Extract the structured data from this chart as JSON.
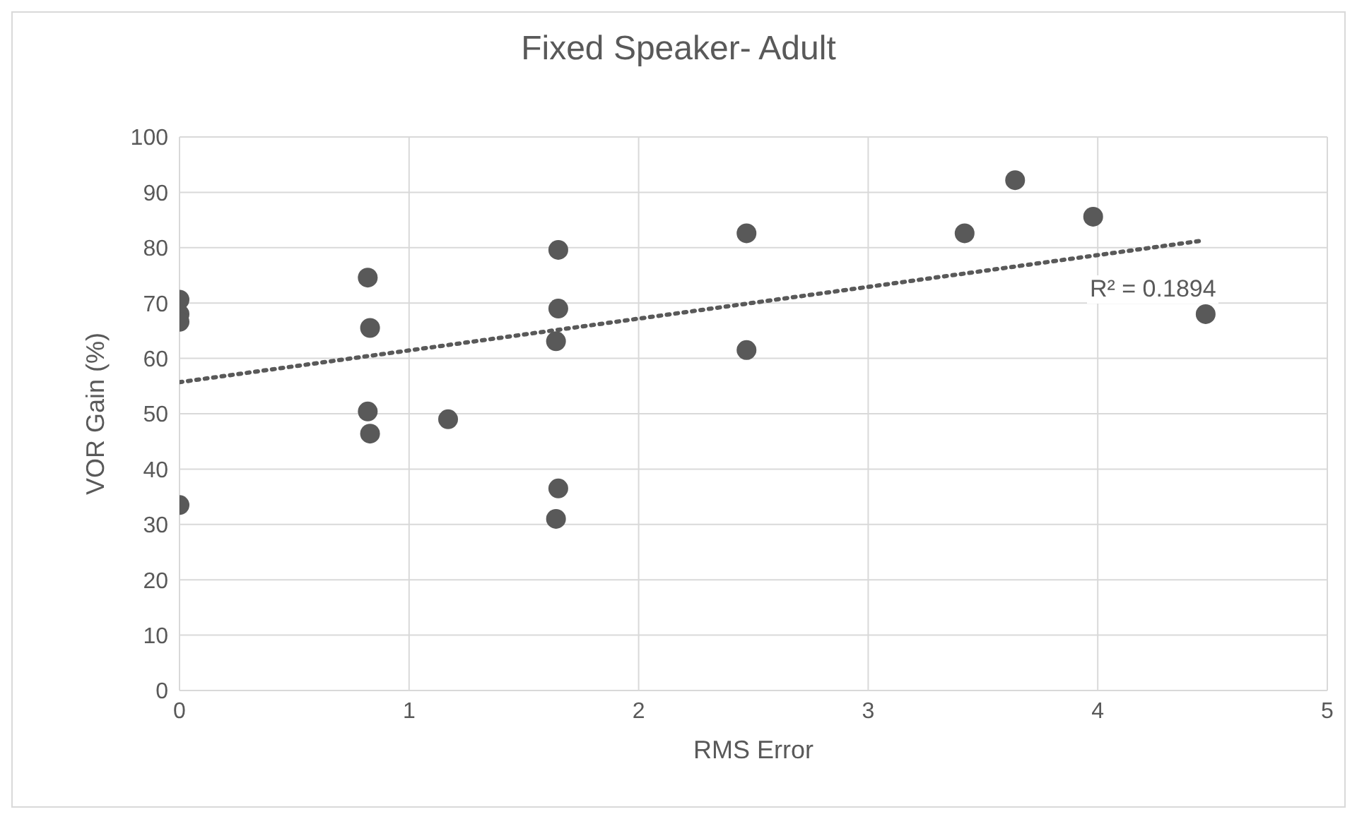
{
  "chart_data": {
    "type": "scatter",
    "title": "Fixed Speaker- Adult",
    "xlabel": "RMS Error",
    "ylabel": "VOR Gain (%)",
    "xlim": [
      0,
      5
    ],
    "xticks": [
      0,
      1,
      2,
      3,
      4,
      5
    ],
    "ylim": [
      0,
      100
    ],
    "yticks": [
      0,
      10,
      20,
      30,
      40,
      50,
      60,
      70,
      80,
      90,
      100
    ],
    "grid": true,
    "marker": "circle",
    "series": [
      {
        "color": "#595959",
        "x": [
          0,
          0,
          0,
          0,
          0.82,
          0.83,
          0.82,
          0.83,
          1.17,
          1.65,
          1.65,
          1.64,
          1.65,
          1.64,
          2.47,
          2.47,
          3.42,
          3.64,
          3.98,
          4.47
        ],
        "values": [
          70.6,
          68,
          66.6,
          33.5,
          74.6,
          65.5,
          50.4,
          46.4,
          49,
          79.6,
          69,
          63.1,
          36.5,
          31,
          82.6,
          61.5,
          82.6,
          92.2,
          85.6,
          68
        ]
      },
      {
        "type": "line",
        "color": "#595959",
        "line_style": "dotted",
        "marker": "none",
        "x": [
          0,
          4.46
        ],
        "values": [
          55.7,
          81.3
        ]
      }
    ],
    "annotations": [
      "R² = 0.1894"
    ]
  }
}
